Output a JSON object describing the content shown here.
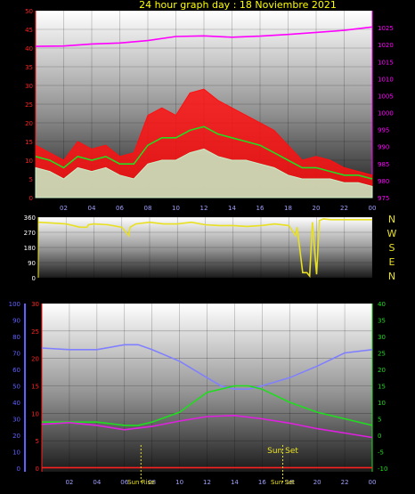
{
  "chart_data": [
    {
      "type": "line",
      "title": "24 hour graph day : 18 Noviembre 2021",
      "x_tick_labels": [
        "02",
        "04",
        "06",
        "08",
        "10",
        "12",
        "14",
        "16",
        "18",
        "20",
        "22",
        "00"
      ],
      "y_left": {
        "range": [
          0,
          50
        ],
        "ticks": [
          "0",
          "5",
          "10",
          "15",
          "20",
          "25",
          "30",
          "35",
          "40",
          "45",
          "50"
        ],
        "color": "#ff2020"
      },
      "y_right": {
        "range": [
          975,
          1030
        ],
        "ticks": [
          "975",
          "980",
          "985",
          "990",
          "995",
          "1000",
          "1005",
          "1010",
          "1015",
          "1020",
          "1025"
        ],
        "color": "#ff00ff"
      },
      "grid": true,
      "series": [
        {
          "color": "#ff1010",
          "style": "filled-line",
          "axis": "left",
          "x": [
            0,
            1,
            2,
            3,
            4,
            5,
            6,
            7,
            8,
            9,
            10,
            11,
            12,
            13,
            14,
            15,
            16,
            17,
            18,
            19,
            20,
            21,
            22,
            23,
            24
          ],
          "values": [
            14,
            12,
            10,
            15,
            13,
            14,
            11,
            12,
            22,
            24,
            22,
            28,
            29,
            26,
            24,
            22,
            20,
            18,
            14,
            10,
            11,
            10,
            8,
            7,
            6
          ]
        },
        {
          "color": "#22dd22",
          "style": "line",
          "axis": "left",
          "x": [
            0,
            1,
            2,
            3,
            4,
            5,
            6,
            7,
            8,
            9,
            10,
            11,
            12,
            13,
            14,
            15,
            16,
            17,
            18,
            19,
            20,
            21,
            22,
            23,
            24
          ],
          "values": [
            11,
            10,
            8,
            11,
            10,
            11,
            9,
            9,
            14,
            16,
            16,
            18,
            19,
            17,
            16,
            15,
            14,
            12,
            10,
            8,
            8,
            7,
            6,
            6,
            5
          ]
        },
        {
          "color": "#c8f0c8",
          "style": "filled-line",
          "axis": "left",
          "x": [
            0,
            1,
            2,
            3,
            4,
            5,
            6,
            7,
            8,
            9,
            10,
            11,
            12,
            13,
            14,
            15,
            16,
            17,
            18,
            19,
            20,
            21,
            22,
            23,
            24
          ],
          "values": [
            8,
            7,
            5,
            8,
            7,
            8,
            6,
            5,
            9,
            10,
            10,
            12,
            13,
            11,
            10,
            10,
            9,
            8,
            6,
            5,
            5,
            5,
            4,
            4,
            3
          ]
        },
        {
          "color": "#ff00ff",
          "style": "line",
          "axis": "right",
          "x": [
            0,
            2,
            4,
            6,
            8,
            10,
            12,
            14,
            16,
            18,
            20,
            22,
            24
          ],
          "values": [
            1019.5,
            1019.6,
            1020.2,
            1020.5,
            1021.2,
            1022.4,
            1022.6,
            1022.2,
            1022.5,
            1023.0,
            1023.6,
            1024.2,
            1025.2
          ]
        }
      ]
    },
    {
      "type": "line",
      "y_left": {
        "range": [
          0,
          360
        ],
        "ticks": [
          "0",
          "90",
          "180",
          "270",
          "360"
        ]
      },
      "right_labels": [
        "N",
        "W",
        "S",
        "E",
        "N"
      ],
      "grid": true,
      "series": [
        {
          "color": "#e8e020",
          "axis": "left",
          "x": [
            0,
            1,
            2,
            3,
            3.5,
            3.6,
            4,
            5,
            6,
            6.5,
            6.6,
            7,
            8,
            9,
            10,
            11,
            12,
            13,
            14,
            15,
            16,
            17,
            18,
            18.5,
            18.6,
            19,
            19.3,
            19.5,
            19.7,
            20,
            20.2,
            20.5,
            21,
            22,
            23,
            24
          ],
          "values": [
            330,
            325,
            320,
            300,
            300,
            315,
            320,
            315,
            300,
            250,
            300,
            320,
            330,
            320,
            320,
            330,
            315,
            310,
            310,
            305,
            310,
            320,
            310,
            250,
            300,
            30,
            30,
            10,
            330,
            20,
            340,
            350,
            345,
            345,
            345,
            345
          ]
        }
      ]
    },
    {
      "type": "line",
      "x_tick_labels": [
        "02",
        "04",
        "06",
        "08",
        "10",
        "12",
        "14",
        "16",
        "18",
        "20",
        "22",
        "00"
      ],
      "y_far_left": {
        "range": [
          0,
          100
        ],
        "ticks": [
          "0",
          "10",
          "20",
          "30",
          "40",
          "50",
          "60",
          "70",
          "80",
          "90",
          "100"
        ],
        "color": "#6060ff"
      },
      "y_left": {
        "range": [
          0,
          30
        ],
        "ticks": [
          "0",
          "5",
          "10",
          "15",
          "20",
          "25",
          "30"
        ],
        "color": "#ff2020"
      },
      "y_right": {
        "range": [
          -10,
          40
        ],
        "ticks": [
          "-10",
          "-5",
          "0",
          "5",
          "10",
          "15",
          "20",
          "25",
          "30",
          "35",
          "40"
        ],
        "color": "#20dd20"
      },
      "annotations": [
        {
          "text": "Sun Rise",
          "x": 7.2
        },
        {
          "text": "Sun Set",
          "x": 17.5
        }
      ],
      "grid": true,
      "series": [
        {
          "color": "#8080ff",
          "axis": "far_left",
          "x": [
            0,
            2,
            4,
            6,
            7,
            8,
            10,
            12,
            13,
            14,
            15,
            16,
            18,
            20,
            22,
            24
          ],
          "values": [
            73,
            72,
            72,
            75,
            75,
            72,
            65,
            55,
            50,
            48,
            48,
            50,
            55,
            62,
            70,
            72
          ]
        },
        {
          "color": "#20dd20",
          "axis": "right",
          "x": [
            0,
            2,
            4,
            6,
            7,
            8,
            10,
            12,
            14,
            15,
            16,
            18,
            20,
            22,
            24
          ],
          "values": [
            4,
            4,
            4,
            3,
            3,
            4,
            7,
            13,
            15,
            15,
            14,
            10,
            7,
            5,
            3
          ]
        },
        {
          "color": "#e020e0",
          "axis": "left",
          "x": [
            0,
            2,
            4,
            6,
            8,
            10,
            12,
            14,
            16,
            18,
            20,
            22,
            24
          ],
          "values": [
            8.0,
            8.3,
            7.8,
            7.0,
            7.6,
            8.6,
            9.4,
            9.6,
            9.0,
            8.2,
            7.2,
            6.4,
            5.6
          ]
        },
        {
          "color": "#ff2020",
          "axis": "left",
          "x": [
            0,
            24
          ],
          "values": [
            0.1,
            0.1
          ]
        }
      ]
    }
  ]
}
